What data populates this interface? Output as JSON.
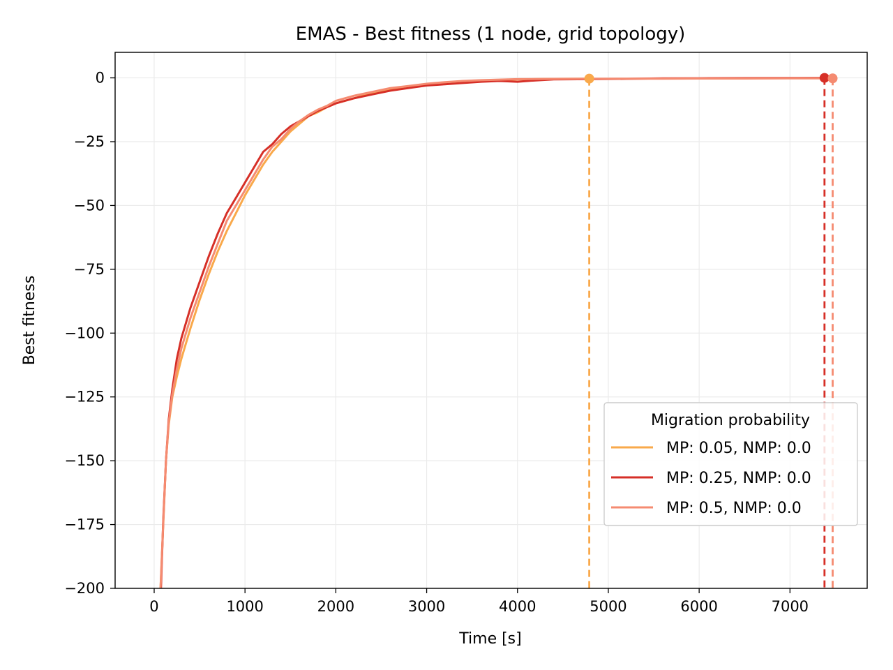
{
  "chart_data": {
    "type": "line",
    "title": "EMAS - Best fitness (1 node, grid topology)",
    "xlabel": "Time [s]",
    "ylabel": "Best fitness",
    "xlim": [
      -430,
      7850
    ],
    "ylim": [
      -200,
      10
    ],
    "xticks": [
      0,
      1000,
      2000,
      3000,
      4000,
      5000,
      6000,
      7000
    ],
    "yticks": [
      0,
      -25,
      -50,
      -75,
      -100,
      -125,
      -150,
      -175,
      -200
    ],
    "xtick_labels": [
      "0",
      "1000",
      "2000",
      "3000",
      "4000",
      "5000",
      "6000",
      "7000"
    ],
    "ytick_labels": [
      "0",
      "−25",
      "−50",
      "−75",
      "−100",
      "−125",
      "−150",
      "−175",
      "−200"
    ],
    "grid": true,
    "legend": {
      "title": "Migration probability",
      "placement": "lower-right"
    },
    "series": [
      {
        "name": "MP: 0.05, NMP: 0.0",
        "color": "#f9a94b",
        "end_time": 4790,
        "end_value": -0.3,
        "x": [
          70,
          100,
          130,
          160,
          200,
          250,
          300,
          400,
          500,
          600,
          700,
          800,
          900,
          1000,
          1100,
          1200,
          1300,
          1400,
          1500,
          1600,
          1700,
          1800,
          1900,
          2000,
          2200,
          2400,
          2600,
          2800,
          3000,
          3200,
          3400,
          3600,
          3800,
          4000,
          4200,
          4400,
          4600,
          4790
        ],
        "y": [
          -200,
          -175,
          -150,
          -136,
          -125,
          -117,
          -110,
          -98,
          -87,
          -77,
          -68,
          -60,
          -53,
          -46,
          -40,
          -34,
          -29,
          -25,
          -21,
          -18,
          -15,
          -13.5,
          -11.5,
          -10,
          -8,
          -6,
          -4.5,
          -3.5,
          -2.5,
          -1.8,
          -1.3,
          -1,
          -0.8,
          -0.6,
          -0.5,
          -0.4,
          -0.35,
          -0.3
        ]
      },
      {
        "name": "MP: 0.25, NMP: 0.0",
        "color": "#d62f27",
        "end_time": 7380,
        "end_value": 0,
        "x": [
          75,
          100,
          130,
          160,
          200,
          250,
          300,
          400,
          500,
          600,
          700,
          800,
          900,
          1000,
          1100,
          1200,
          1300,
          1400,
          1500,
          1600,
          1700,
          1800,
          1900,
          2000,
          2200,
          2400,
          2600,
          2800,
          3000,
          3200,
          3400,
          3600,
          3800,
          4000,
          4200,
          4400,
          4800,
          5200,
          5600,
          6000,
          6500,
          7000,
          7380
        ],
        "y": [
          -200,
          -173,
          -150,
          -134,
          -122,
          -110,
          -102,
          -90,
          -80,
          -70,
          -61,
          -53,
          -47,
          -41,
          -35,
          -29,
          -26,
          -22,
          -19,
          -17,
          -15,
          -13,
          -11.5,
          -10,
          -8,
          -6.5,
          -5,
          -4,
          -3,
          -2.5,
          -2,
          -1.5,
          -1.2,
          -1.5,
          -1,
          -0.6,
          -0.5,
          -0.4,
          -0.2,
          -0.15,
          -0.1,
          -0.05,
          0
        ]
      },
      {
        "name": "MP: 0.5, NMP: 0.0",
        "color": "#f58b71",
        "end_time": 7470,
        "end_value": -0.2,
        "x": [
          70,
          100,
          130,
          160,
          200,
          250,
          300,
          400,
          500,
          600,
          700,
          800,
          900,
          1000,
          1100,
          1200,
          1300,
          1400,
          1500,
          1600,
          1700,
          1800,
          1900,
          2000,
          2200,
          2400,
          2600,
          2800,
          3000,
          3200,
          3400,
          3600,
          3800,
          4000,
          4400,
          4800,
          5200,
          5600,
          6000,
          6500,
          7000,
          7470
        ],
        "y": [
          -200,
          -174,
          -150,
          -135,
          -124,
          -114,
          -106,
          -94,
          -84,
          -74,
          -65,
          -56,
          -50,
          -44,
          -38,
          -32,
          -27,
          -24,
          -20,
          -17,
          -14.5,
          -12.5,
          -11,
          -9,
          -7,
          -5.5,
          -4,
          -3.2,
          -2.3,
          -1.7,
          -1.2,
          -0.9,
          -0.7,
          -0.5,
          -0.4,
          -0.35,
          -0.3,
          -0.3,
          -0.25,
          -0.25,
          -0.2,
          -0.2
        ]
      }
    ]
  }
}
